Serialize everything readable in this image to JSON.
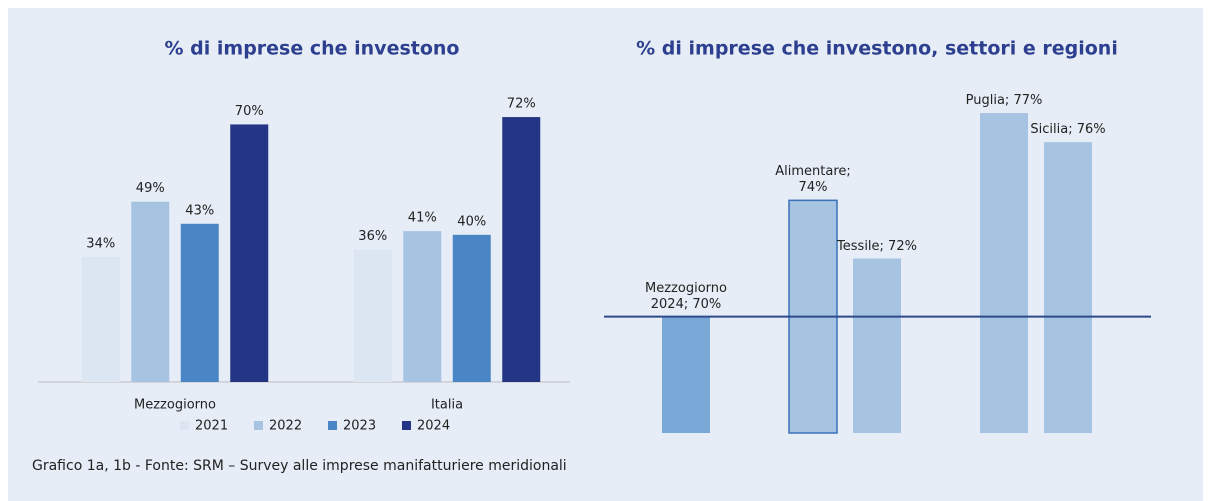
{
  "chart_data": [
    {
      "type": "bar",
      "title": "% di imprese che investono",
      "categories": [
        "Mezzogiorno",
        "Italia"
      ],
      "series": [
        {
          "name": "2021",
          "color": "#dce6f2",
          "values": [
            34,
            36
          ],
          "value_labels": [
            "34%",
            "36%"
          ]
        },
        {
          "name": "2022",
          "color": "#a6c3e2",
          "values": [
            49,
            41
          ],
          "value_labels": [
            "49%",
            "41%"
          ]
        },
        {
          "name": "2023",
          "color": "#4a86c5",
          "values": [
            43,
            40
          ],
          "value_labels": [
            "43%",
            "40%"
          ]
        },
        {
          "name": "2024",
          "color": "#233584",
          "values": [
            70,
            72
          ],
          "value_labels": [
            "70%",
            "72%"
          ]
        }
      ],
      "ylim": [
        0,
        78
      ],
      "legend": "bottom"
    },
    {
      "type": "bar",
      "title": "% di imprese che investono, settori e regioni",
      "values": [
        70,
        74,
        72,
        77,
        76
      ],
      "value_labels": [
        "Mezzogiorno 2024; 70%",
        "Alimentare; 74%",
        "Tessile; 72%",
        "Puglia; 77%",
        "Sicilia; 76%"
      ],
      "colors": [
        "#7aa8d6",
        "#a6c3e2",
        "#a6c3e2",
        "#a6c3e2",
        "#a6c3e2"
      ],
      "ylim": [
        66,
        78
      ]
    }
  ],
  "caption": "Grafico 1a, 1b - Fonte: SRM – Survey alle imprese manifatturiere meridionali"
}
